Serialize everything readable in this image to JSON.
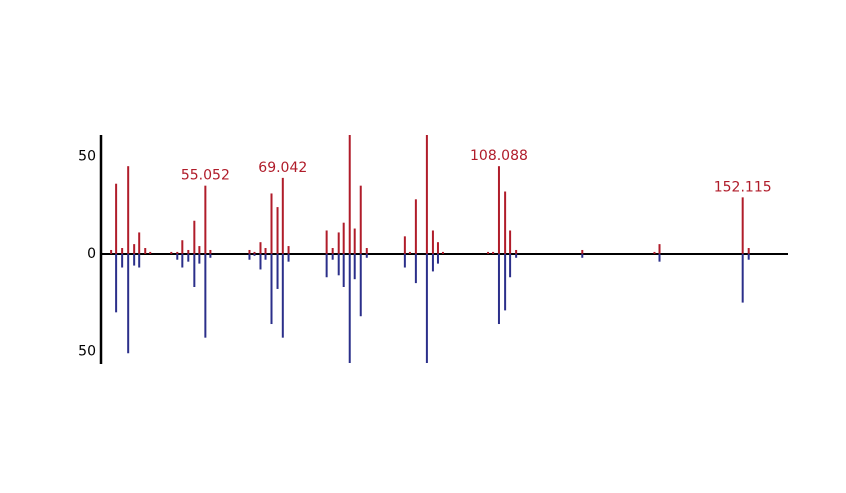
{
  "chart_data": {
    "type": "mirror",
    "x": [
      38.03,
      38.93,
      40.02,
      41.11,
      42.19,
      43.1,
      44.19,
      45.09,
      48.9,
      49.98,
      50.89,
      51.97,
      53.06,
      53.97,
      55.052,
      55.96,
      63.02,
      63.93,
      65.01,
      65.92,
      67.0,
      68.09,
      69.042,
      70.08,
      76.96,
      78.05,
      79.14,
      80.04,
      81.13,
      82.03,
      83.12,
      84.21,
      91.09,
      92.0,
      93.08,
      95.07,
      96.16,
      97.07,
      97.97,
      106.12,
      107.03,
      108.088,
      109.2,
      110.1,
      111.19,
      123.14,
      136.18,
      137.09,
      152.115,
      153.2
    ],
    "series": [
      {
        "color": "#b01c2a",
        "values": [
          2,
          36,
          3,
          45,
          5,
          11,
          3,
          1,
          1,
          1,
          7,
          2,
          17,
          4,
          35,
          2,
          2,
          1,
          6,
          3,
          31,
          24,
          39,
          4,
          12,
          3,
          11,
          16,
          61,
          13,
          35,
          3,
          9,
          1,
          28,
          61,
          12,
          6,
          1,
          1,
          1,
          45,
          32,
          12,
          2,
          2,
          1,
          5,
          29,
          3
        ]
      },
      {
        "color": "#2b2f8a",
        "values": [
          null,
          -30,
          -7,
          -51,
          -6,
          -7,
          null,
          null,
          null,
          -3,
          -7,
          -4,
          -17,
          -5,
          -43,
          -2,
          -3,
          -1,
          -8,
          -3,
          -36,
          -18,
          -43,
          -4,
          -12,
          -3,
          -11,
          -17,
          -56,
          -13,
          -32,
          -2,
          -7,
          null,
          -15,
          -56,
          -9,
          -5,
          null,
          null,
          null,
          -36,
          -29,
          -12,
          -2,
          -2,
          null,
          -4,
          -25,
          -3
        ]
      }
    ],
    "annotations": [
      {
        "label": "55.052",
        "x": 55.052
      },
      {
        "label": "69.042",
        "x": 69.042
      },
      {
        "label": "108.088",
        "x": 108.088
      },
      {
        "label": "152.115",
        "x": 152.115
      }
    ],
    "xlim": [
      36.2,
      160.3
    ],
    "ylim": [
      -56,
      61
    ],
    "yticks": [
      {
        "value": -50,
        "label": "50"
      },
      0,
      50
    ]
  }
}
